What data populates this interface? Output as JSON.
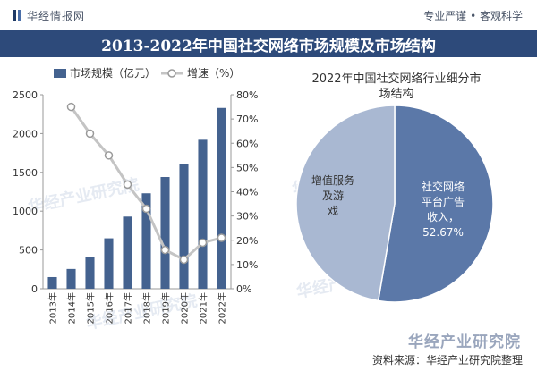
{
  "header": {
    "brand_name": "华经情报网",
    "slogan": "专业严谨 • 客观科学"
  },
  "banner": {
    "title": "2013-2022年中国社交网络市场规模及市场结构"
  },
  "watermarks": [
    "华经产业研究院",
    "华经产业研究院",
    "华经产业研究院",
    "华经产业研究院"
  ],
  "footer": {
    "logo": "华经产业研究院",
    "source": "资料来源：华经产业研究院整理"
  },
  "chart_data": [
    {
      "type": "bar",
      "categories": [
        "2013年",
        "2014年",
        "2015年",
        "2016年",
        "2017年",
        "2018年",
        "2019年",
        "2020年",
        "2021年",
        "2022年"
      ],
      "series": [
        {
          "name": "市场规模（亿元）",
          "kind": "bar",
          "axis": "left",
          "color": "#44628f",
          "values": [
            150,
            255,
            410,
            650,
            930,
            1230,
            1440,
            1610,
            1920,
            2330
          ]
        },
        {
          "name": "增速（%）",
          "kind": "line",
          "axis": "right",
          "color": "#c4c4c4",
          "values": [
            null,
            75,
            64,
            55,
            43,
            33,
            16,
            12,
            19,
            21
          ]
        }
      ],
      "ylim_left": [
        0,
        2500
      ],
      "yticks_left": [
        0,
        500,
        1000,
        1500,
        2000,
        2500
      ],
      "ylim_right": [
        0,
        80
      ],
      "yticks_right": [
        "0%",
        "10%",
        "20%",
        "30%",
        "40%",
        "50%",
        "60%",
        "70%",
        "80%"
      ],
      "legend_position": "top-left",
      "grid": false
    },
    {
      "type": "pie",
      "title": "2022年中国社交网络行业细分市场结构",
      "slices": [
        {
          "label": "社交网络平台广告收入",
          "value": 52.67,
          "value_label": "52.67%",
          "color": "#5b78a8"
        },
        {
          "label": "增值服务及游戏",
          "value": 47.33,
          "value_label": "",
          "color": "#a9b8d2"
        }
      ]
    }
  ]
}
